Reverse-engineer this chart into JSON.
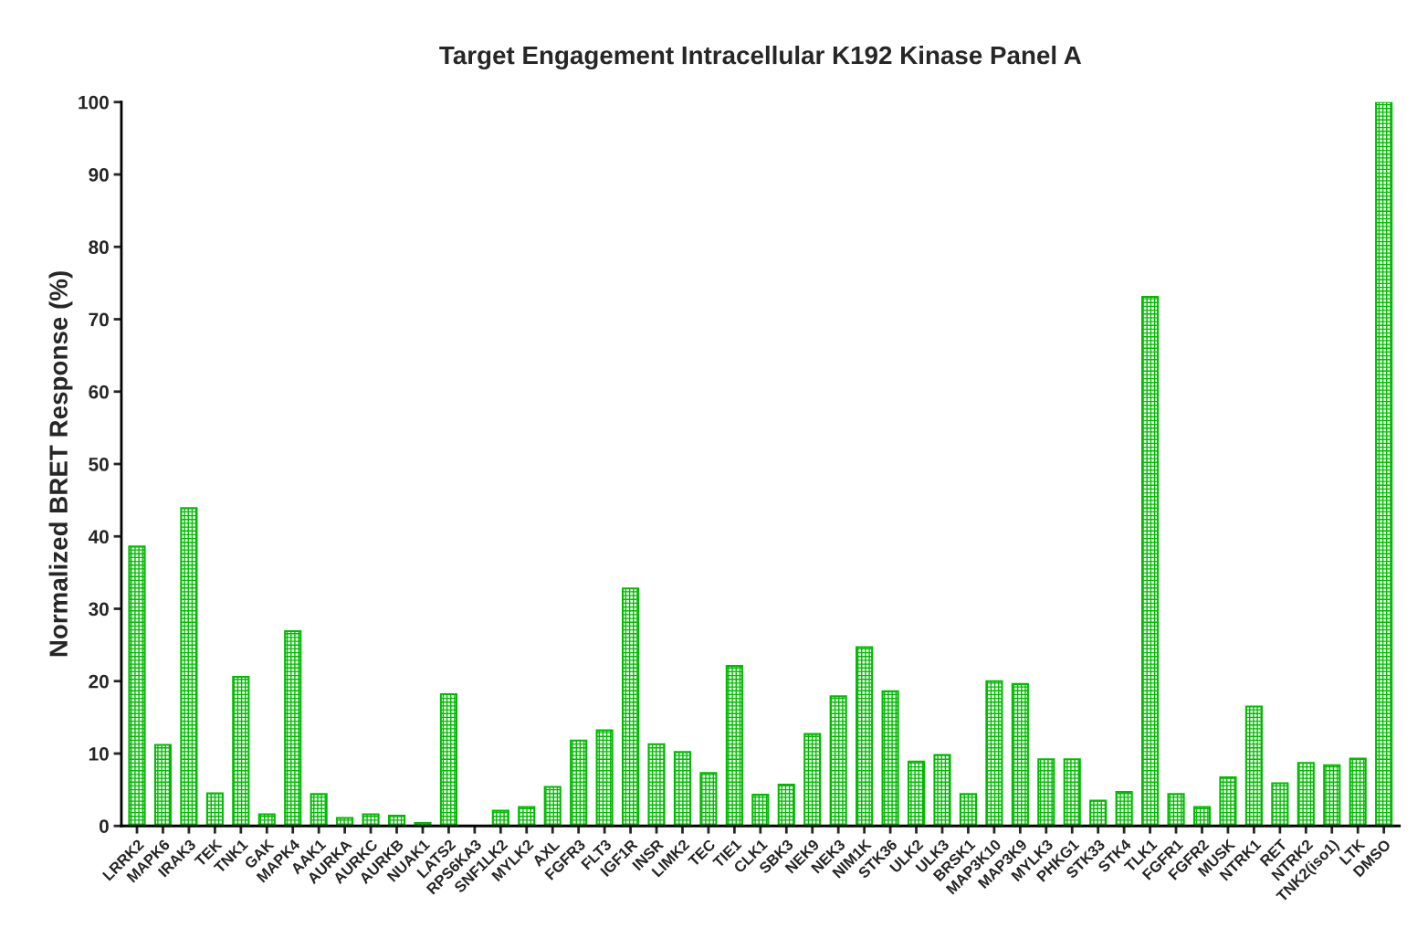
{
  "chart_data": {
    "type": "bar",
    "title": "Target Engagement Intracellular K192 Kinase Panel A",
    "ylabel": "Normalized BRET Response (%)",
    "categories": [
      "LRRK2",
      "MAPK6",
      "IRAK3",
      "TEK",
      "TNK1",
      "GAK",
      "MAPK4",
      "AAK1",
      "AURKA",
      "AURKC",
      "AURKB",
      "NUAK1",
      "LATS2",
      "RPS6KA3",
      "SNF1LK2",
      "MYLK2",
      "AXL",
      "FGFR3",
      "FLT3",
      "IGF1R",
      "INSR",
      "LIMK2",
      "TEC",
      "TIE1",
      "CLK1",
      "SBK3",
      "NEK9",
      "NEK3",
      "NIM1K",
      "STK36",
      "ULK2",
      "ULK3",
      "BRSK1",
      "MAP3K10",
      "MAP3K9",
      "MYLK3",
      "PHKG1",
      "STK33",
      "STK4",
      "TLK1",
      "FGFR1",
      "FGFR2",
      "MUSK",
      "NTRK1",
      "RET",
      "NTRK2",
      "TNK2(iso1)",
      "LTK",
      "DMSO"
    ],
    "values": [
      38.6,
      11.2,
      43.9,
      4.5,
      20.6,
      1.6,
      26.9,
      4.4,
      1.1,
      1.6,
      1.4,
      0.4,
      18.2,
      0,
      2.1,
      2.6,
      5.4,
      11.8,
      13.2,
      32.8,
      11.3,
      10.2,
      7.3,
      22.1,
      4.3,
      5.7,
      12.7,
      17.9,
      24.7,
      18.6,
      8.9,
      9.8,
      4.4,
      20.0,
      19.6,
      9.2,
      9.2,
      3.5,
      4.7,
      73.1,
      4.4,
      2.6,
      6.7,
      16.5,
      5.9,
      8.7,
      8.4,
      9.3,
      100
    ],
    "color": "#00bb00",
    "ylim": [
      0,
      100
    ],
    "yticks": [
      0,
      10,
      20,
      30,
      40,
      50,
      60,
      70,
      80,
      90,
      100
    ],
    "grid": false
  }
}
